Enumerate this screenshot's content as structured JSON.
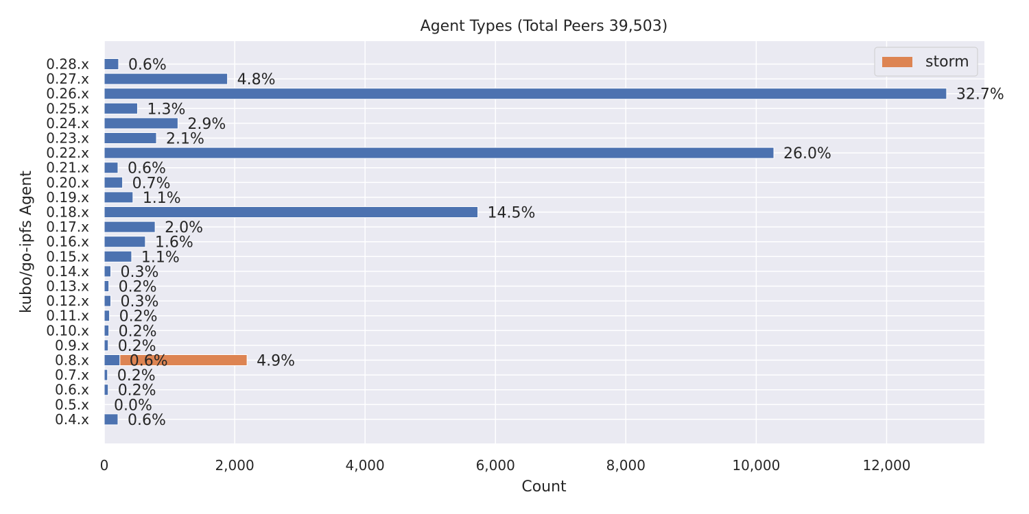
{
  "chart_data": {
    "type": "bar",
    "orientation": "horizontal",
    "title": "Agent Types (Total Peers 39,503)",
    "xlabel": "Count",
    "ylabel": "kubo/go-ipfs Agent",
    "xlim": [
      0,
      13500
    ],
    "x_ticks": [
      0,
      2000,
      4000,
      6000,
      8000,
      10000,
      12000
    ],
    "x_tick_labels": [
      "0",
      "2,000",
      "4,000",
      "6,000",
      "8,000",
      "10,000",
      "12,000"
    ],
    "grid": true,
    "legend_position": "top-right",
    "categories": [
      "0.28.x",
      "0.27.x",
      "0.26.x",
      "0.25.x",
      "0.24.x",
      "0.23.x",
      "0.22.x",
      "0.21.x",
      "0.20.x",
      "0.19.x",
      "0.18.x",
      "0.17.x",
      "0.16.x",
      "0.15.x",
      "0.14.x",
      "0.13.x",
      "0.12.x",
      "0.11.x",
      "0.10.x",
      "0.9.x",
      "0.8.x",
      "0.7.x",
      "0.6.x",
      "0.5.x",
      "0.4.x"
    ],
    "series": [
      {
        "color": "#4c72b0",
        "values": [
          220,
          1890,
          12920,
          510,
          1130,
          800,
          10270,
          210,
          280,
          440,
          5730,
          780,
          630,
          420,
          100,
          70,
          100,
          80,
          70,
          60,
          240,
          50,
          60,
          0,
          210
        ],
        "labels": [
          "0.6%",
          "4.8%",
          "32.7%",
          "1.3%",
          "2.9%",
          "2.1%",
          "26.0%",
          "0.6%",
          "0.7%",
          "1.1%",
          "14.5%",
          "2.0%",
          "1.6%",
          "1.1%",
          "0.3%",
          "0.2%",
          "0.3%",
          "0.2%",
          "0.2%",
          "0.2%",
          "0.6%",
          "0.2%",
          "0.2%",
          "0.0%",
          "0.6%"
        ]
      },
      {
        "name": "storm",
        "color": "#dd8452",
        "values": [
          0,
          0,
          0,
          0,
          0,
          0,
          0,
          0,
          0,
          0,
          0,
          0,
          0,
          0,
          0,
          0,
          0,
          0,
          0,
          0,
          1950,
          0,
          0,
          0,
          0
        ],
        "labels": [
          "",
          "",
          "",
          "",
          "",
          "",
          "",
          "",
          "",
          "",
          "",
          "",
          "",
          "",
          "",
          "",
          "",
          "",
          "",
          "",
          "4.9%",
          "",
          "",
          "",
          ""
        ]
      }
    ]
  }
}
